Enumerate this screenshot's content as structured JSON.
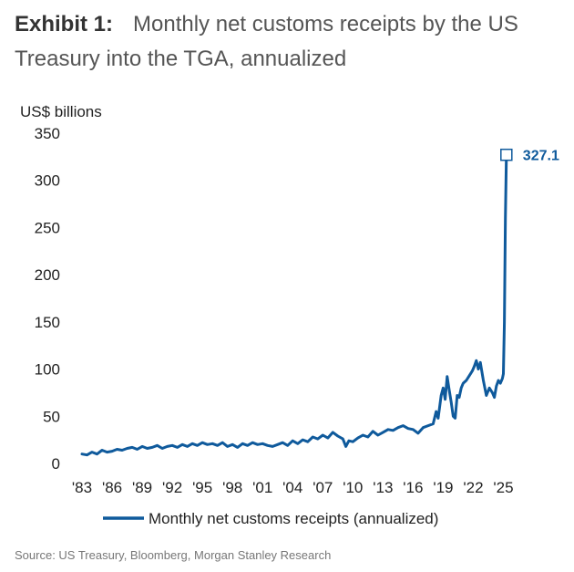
{
  "exhibit_label": "Exhibit 1:",
  "title": "Monthly net customs receipts by the US Treasury into the TGA, annualized",
  "source": "Source: US Treasury, Bloomberg, Morgan Stanley Research",
  "colors": {
    "series": "#0f5a9c",
    "axis_text": "#222222",
    "title": "#555555"
  },
  "chart_data": {
    "type": "line",
    "ylabel": "US$ billions",
    "xlabel": "",
    "ylim": [
      0,
      350
    ],
    "xlim": [
      1983,
      2025.5
    ],
    "y_ticks": [
      0,
      50,
      100,
      150,
      200,
      250,
      300,
      350
    ],
    "x_ticks": [
      {
        "value": 1983,
        "label": "'83"
      },
      {
        "value": 1986,
        "label": "'86"
      },
      {
        "value": 1989,
        "label": "'89"
      },
      {
        "value": 1992,
        "label": "'92"
      },
      {
        "value": 1995,
        "label": "'95"
      },
      {
        "value": 1998,
        "label": "'98"
      },
      {
        "value": 2001,
        "label": "'01"
      },
      {
        "value": 2004,
        "label": "'04"
      },
      {
        "value": 2007,
        "label": "'07"
      },
      {
        "value": 2010,
        "label": "'10"
      },
      {
        "value": 2013,
        "label": "'13"
      },
      {
        "value": 2016,
        "label": "'16"
      },
      {
        "value": 2019,
        "label": "'19"
      },
      {
        "value": 2022,
        "label": "'22"
      },
      {
        "value": 2025,
        "label": "'25"
      }
    ],
    "grid": false,
    "legend_position": "bottom",
    "series": [
      {
        "name": "Monthly net customs receipts (annualized)",
        "x": [
          1983.0,
          1983.5,
          1984.0,
          1984.5,
          1985.0,
          1985.5,
          1986.0,
          1986.5,
          1987.0,
          1987.5,
          1988.0,
          1988.5,
          1989.0,
          1989.5,
          1990.0,
          1990.5,
          1991.0,
          1991.5,
          1992.0,
          1992.5,
          1993.0,
          1993.5,
          1994.0,
          1994.5,
          1995.0,
          1995.5,
          1996.0,
          1996.5,
          1997.0,
          1997.5,
          1998.0,
          1998.5,
          1999.0,
          1999.5,
          2000.0,
          2000.5,
          2001.0,
          2001.5,
          2002.0,
          2002.5,
          2003.0,
          2003.5,
          2004.0,
          2004.5,
          2005.0,
          2005.5,
          2006.0,
          2006.5,
          2007.0,
          2007.5,
          2008.0,
          2008.5,
          2009.0,
          2009.3,
          2009.6,
          2010.0,
          2010.5,
          2011.0,
          2011.5,
          2012.0,
          2012.5,
          2013.0,
          2013.5,
          2014.0,
          2014.5,
          2015.0,
          2015.5,
          2016.0,
          2016.5,
          2017.0,
          2017.5,
          2018.0,
          2018.3,
          2018.5,
          2018.8,
          2019.0,
          2019.2,
          2019.4,
          2019.6,
          2019.8,
          2020.0,
          2020.2,
          2020.4,
          2020.6,
          2020.8,
          2021.0,
          2021.3,
          2021.6,
          2021.9,
          2022.1,
          2022.3,
          2022.5,
          2022.7,
          2023.0,
          2023.3,
          2023.6,
          2023.9,
          2024.1,
          2024.3,
          2024.5,
          2024.7,
          2024.9,
          2025.0,
          2025.1,
          2025.2,
          2025.3
        ],
        "values": [
          10,
          9,
          12,
          10,
          14,
          12,
          13,
          15,
          14,
          16,
          17,
          15,
          18,
          16,
          17,
          19,
          16,
          18,
          19,
          17,
          20,
          18,
          21,
          19,
          22,
          20,
          21,
          19,
          22,
          18,
          20,
          17,
          21,
          19,
          22,
          20,
          21,
          19,
          18,
          20,
          22,
          19,
          24,
          21,
          25,
          23,
          28,
          26,
          30,
          27,
          33,
          29,
          26,
          18,
          24,
          23,
          27,
          30,
          28,
          34,
          30,
          33,
          36,
          35,
          38,
          40,
          37,
          36,
          32,
          38,
          40,
          42,
          55,
          48,
          72,
          80,
          68,
          92,
          78,
          65,
          50,
          48,
          72,
          70,
          80,
          85,
          88,
          93,
          98,
          103,
          109,
          100,
          107,
          88,
          72,
          80,
          75,
          70,
          82,
          88,
          85,
          90,
          95,
          150,
          260,
          327.1
        ]
      }
    ],
    "annotations": [
      {
        "x": 2025.3,
        "y": 327.1,
        "label": "327.1"
      }
    ]
  }
}
